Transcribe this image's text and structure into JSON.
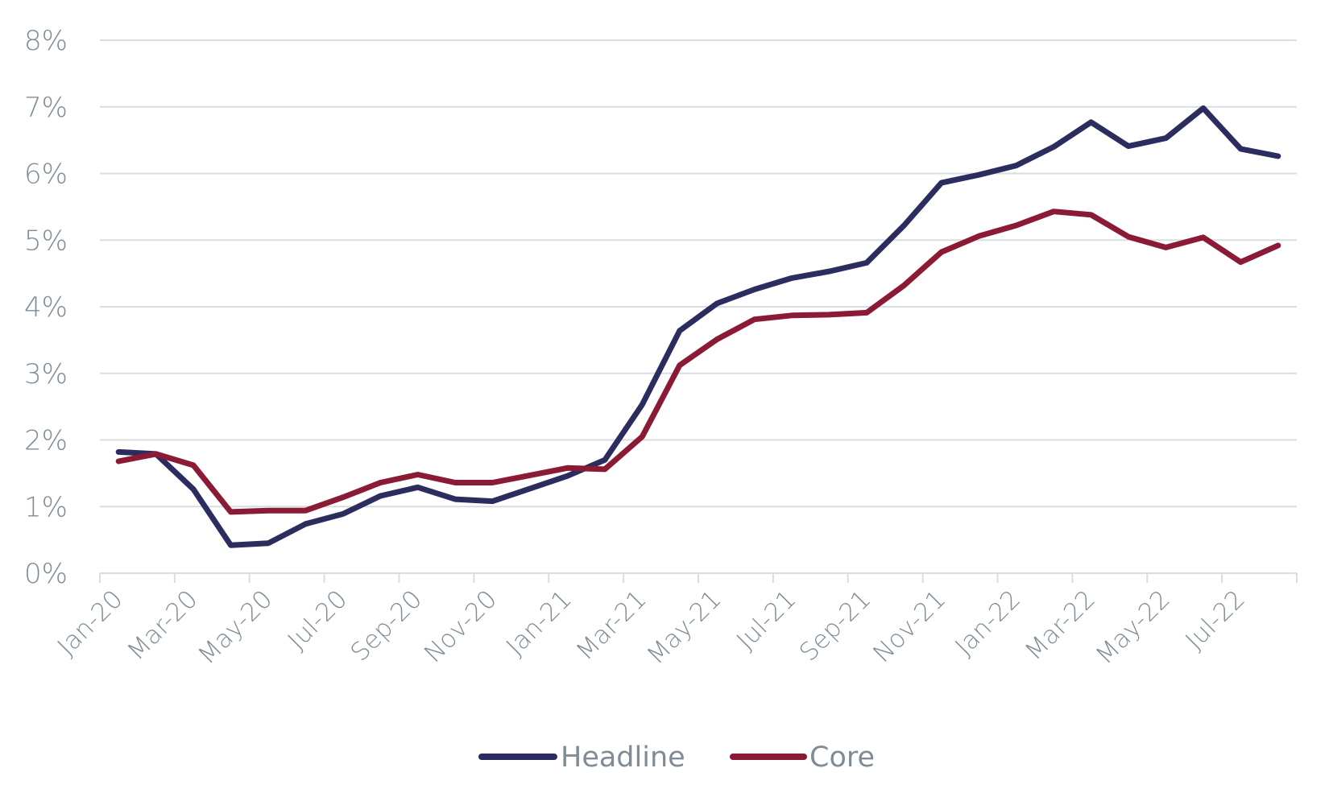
{
  "chart_data": {
    "type": "line",
    "title": "",
    "xlabel": "",
    "ylabel": "",
    "ylim": [
      0,
      8
    ],
    "y_ticks": [
      "0%",
      "1%",
      "2%",
      "3%",
      "4%",
      "5%",
      "6%",
      "7%",
      "8%"
    ],
    "grid": true,
    "legend_position": "bottom-center",
    "x": [
      "Jan-20",
      "Feb-20",
      "Mar-20",
      "Apr-20",
      "May-20",
      "Jun-20",
      "Jul-20",
      "Aug-20",
      "Sep-20",
      "Oct-20",
      "Nov-20",
      "Dec-20",
      "Jan-21",
      "Feb-21",
      "Mar-21",
      "Apr-21",
      "May-21",
      "Jun-21",
      "Jul-21",
      "Aug-21",
      "Sep-21",
      "Oct-21",
      "Nov-21",
      "Dec-21",
      "Jan-22",
      "Feb-22",
      "Mar-22",
      "Apr-22",
      "May-22",
      "Jun-22",
      "Jul-22",
      "Aug-22"
    ],
    "x_tick_labels": [
      "Jan-20",
      "Mar-20",
      "May-20",
      "Jul-20",
      "Sep-20",
      "Nov-20",
      "Jan-21",
      "Mar-21",
      "May-21",
      "Jul-21",
      "Sep-21",
      "Nov-21",
      "Jan-22",
      "Mar-22",
      "May-22",
      "Jul-22"
    ],
    "series": [
      {
        "name": "Headline",
        "color": "#2b2d5e",
        "values": [
          1.82,
          1.79,
          1.26,
          0.42,
          0.45,
          0.74,
          0.89,
          1.16,
          1.29,
          1.11,
          1.08,
          1.27,
          1.46,
          1.7,
          2.53,
          3.64,
          4.05,
          4.26,
          4.43,
          4.53,
          4.66,
          5.22,
          5.86,
          5.98,
          6.12,
          6.4,
          6.77,
          6.41,
          6.53,
          6.98,
          6.37,
          6.26
        ]
      },
      {
        "name": "Core",
        "color": "#8b1a35",
        "values": [
          1.68,
          1.79,
          1.62,
          0.92,
          0.94,
          0.94,
          1.14,
          1.36,
          1.48,
          1.36,
          1.36,
          1.47,
          1.58,
          1.56,
          2.05,
          3.12,
          3.51,
          3.81,
          3.87,
          3.88,
          3.91,
          4.32,
          4.82,
          5.06,
          5.22,
          5.43,
          5.38,
          5.05,
          4.89,
          5.04,
          4.67,
          4.92
        ]
      }
    ]
  }
}
